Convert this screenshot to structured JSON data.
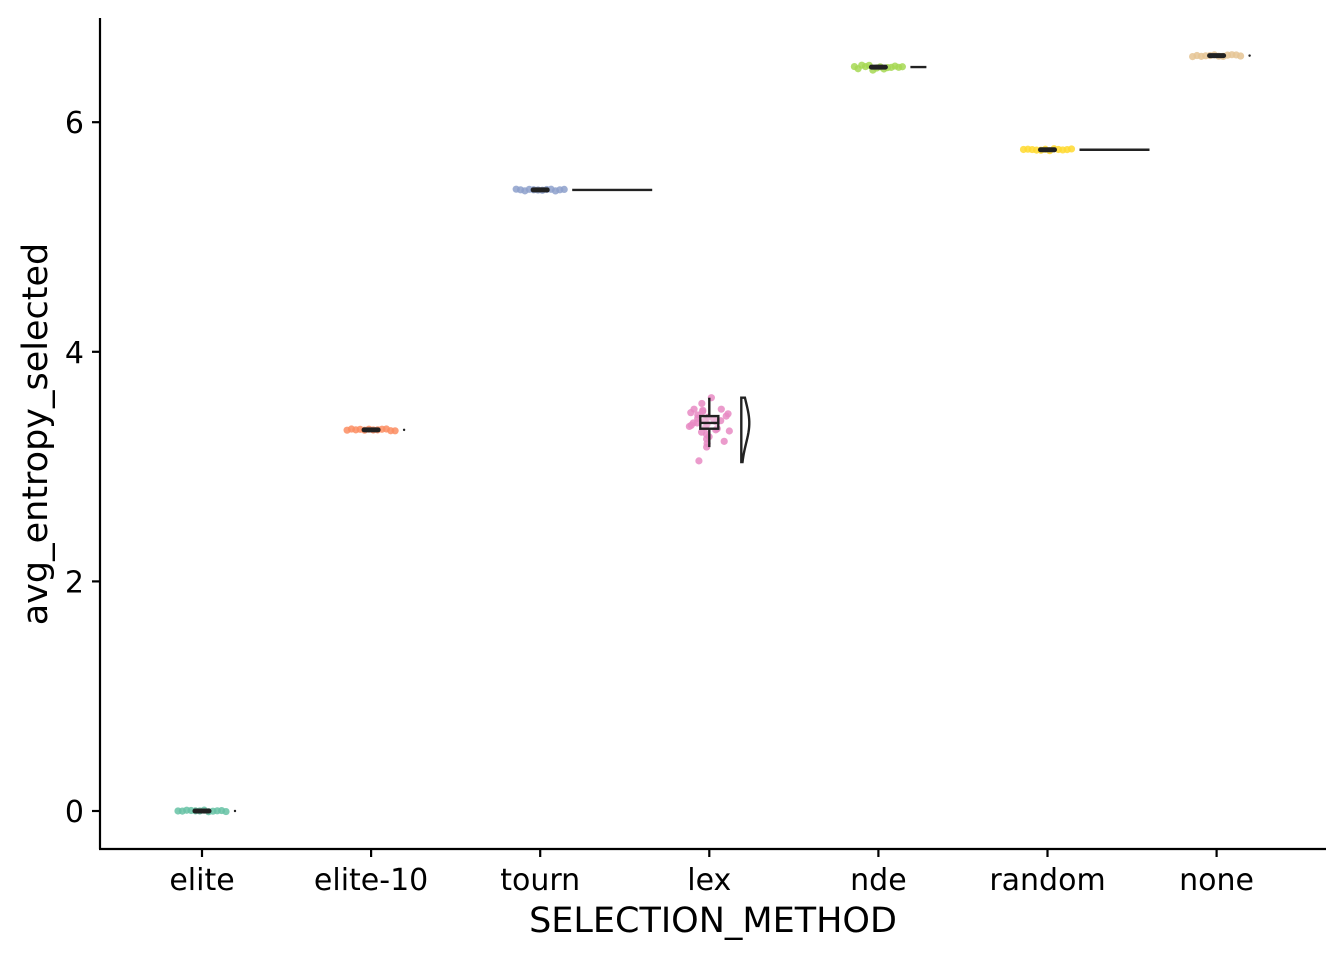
{
  "chart_data": {
    "type": "raincloud",
    "xlabel": "SELECTION_METHOD",
    "ylabel": "avg_entropy_selected",
    "ylim": [
      -0.33,
      6.92
    ],
    "yticks": [
      0,
      2,
      4,
      6
    ],
    "grid": false,
    "legend": "none",
    "categories": [
      "elite",
      "elite-10",
      "tourn",
      "lex",
      "nde",
      "random",
      "none"
    ],
    "series": [
      {
        "category": "elite",
        "color": "#66c2a5",
        "median": 0.0,
        "q1": 0.0,
        "q3": 0.0,
        "min": 0.0,
        "max": 0.0,
        "points": [
          0.0,
          0.0,
          0.0,
          0.0,
          0.0,
          0.0,
          0.0,
          0.0,
          0.0,
          0.0,
          0.0,
          0.0
        ]
      },
      {
        "category": "elite-10",
        "color": "#fc8d62",
        "median": 3.32,
        "q1": 3.32,
        "q3": 3.32,
        "min": 3.32,
        "max": 3.32,
        "points": [
          3.32,
          3.32,
          3.32,
          3.32,
          3.32,
          3.32,
          3.32,
          3.32,
          3.32,
          3.32,
          3.32,
          3.32
        ]
      },
      {
        "category": "tourn",
        "color": "#8da0cb",
        "median": 5.41,
        "q1": 5.41,
        "q3": 5.41,
        "min": 5.41,
        "max": 5.41,
        "points": [
          5.41,
          5.41,
          5.41,
          5.41,
          5.41,
          5.41,
          5.41,
          5.41,
          5.41,
          5.41,
          5.41,
          5.41
        ]
      },
      {
        "category": "lex",
        "color": "#e78ac3",
        "median": 3.38,
        "q1": 3.33,
        "q3": 3.44,
        "min": 3.17,
        "max": 3.6,
        "points": [
          3.6,
          3.55,
          3.5,
          3.5,
          3.49,
          3.48,
          3.47,
          3.46,
          3.45,
          3.44,
          3.43,
          3.42,
          3.41,
          3.4,
          3.4,
          3.39,
          3.38,
          3.38,
          3.37,
          3.36,
          3.35,
          3.34,
          3.33,
          3.32,
          3.31,
          3.3,
          3.28,
          3.26,
          3.24,
          3.22,
          3.2,
          3.17,
          3.05
        ]
      },
      {
        "category": "nde",
        "color": "#a6d854",
        "median": 6.48,
        "q1": 6.47,
        "q3": 6.49,
        "min": 6.46,
        "max": 6.5,
        "points": [
          6.48,
          6.47,
          6.49,
          6.48,
          6.5,
          6.46,
          6.48,
          6.49,
          6.47,
          6.48,
          6.48,
          6.49,
          6.47,
          6.48
        ]
      },
      {
        "category": "random",
        "color": "#ffd92f",
        "median": 5.76,
        "q1": 5.76,
        "q3": 5.76,
        "min": 5.76,
        "max": 5.76,
        "points": [
          5.76,
          5.76,
          5.76,
          5.76,
          5.76,
          5.76,
          5.76,
          5.76,
          5.76,
          5.76,
          5.76,
          5.76
        ]
      },
      {
        "category": "none",
        "color": "#e5c494",
        "median": 6.58,
        "q1": 6.58,
        "q3": 6.58,
        "min": 6.58,
        "max": 6.58,
        "points": [
          6.58,
          6.58,
          6.58,
          6.58,
          6.58,
          6.58,
          6.58,
          6.58,
          6.58,
          6.58,
          6.58,
          6.58
        ]
      }
    ]
  }
}
